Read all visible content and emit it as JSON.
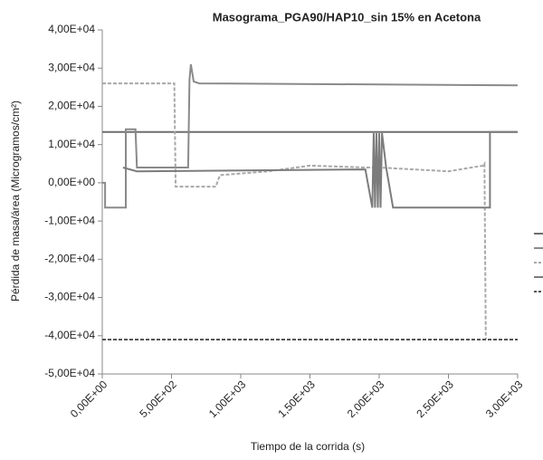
{
  "chart_data": {
    "type": "line",
    "title": "Masograma_PGA90/HAP10_sin 15% en Acetona",
    "x_label": "Tiempo de la corrida (s)",
    "y_label": "Pérdida de masa/área (Microgramos/cm²)",
    "xlim": [
      0,
      3000
    ],
    "xticks": [
      {
        "value": 0,
        "label": "0,00E+00"
      },
      {
        "value": 500,
        "label": "5,00E+02"
      },
      {
        "value": 1000,
        "label": "1,00E+03"
      },
      {
        "value": 1500,
        "label": "1,50E+03"
      },
      {
        "value": 2000,
        "label": "2,00E+03"
      },
      {
        "value": 2500,
        "label": "2,50E+03"
      },
      {
        "value": 3000,
        "label": "3,00E+03"
      }
    ],
    "ylim": [
      -50000,
      40000
    ],
    "yticks": [
      {
        "value": -50000,
        "label": "-5,00E+04"
      },
      {
        "value": -40000,
        "label": "-4,00E+04"
      },
      {
        "value": -30000,
        "label": "-3,00E+04"
      },
      {
        "value": -20000,
        "label": "-2,00E+04"
      },
      {
        "value": -10000,
        "label": "-1,00E+04"
      },
      {
        "value": 0,
        "label": "0,00E+00"
      },
      {
        "value": 10000,
        "label": "1,00E+04"
      },
      {
        "value": 20000,
        "label": "2,00E+04"
      },
      {
        "value": 30000,
        "label": "3,00E+04"
      },
      {
        "value": 40000,
        "label": "4,00E+04"
      }
    ],
    "grid": false,
    "series": [
      {
        "color": "#6e6e6e",
        "dash": false,
        "x": [
          0,
          3000
        ],
        "values": [
          13300,
          13300
        ]
      },
      {
        "color": "#8a8a8a",
        "dash": false,
        "x": [
          0,
          20,
          20,
          170,
          170,
          190,
          240,
          250,
          620,
          630,
          640,
          660,
          700,
          3000
        ],
        "values": [
          0,
          0,
          -6500,
          -6500,
          14000,
          14000,
          14000,
          4000,
          4000,
          27000,
          31000,
          26500,
          26000,
          25500
        ]
      },
      {
        "color": "#a8a8a8",
        "dash": true,
        "x": [
          0,
          500,
          520,
          530,
          820,
          850,
          1200,
          1500,
          1900,
          2000,
          2500,
          2750,
          2760,
          2770
        ],
        "values": [
          26000,
          26000,
          26000,
          -1000,
          -1000,
          2000,
          3000,
          4500,
          4000,
          4000,
          3000,
          4500,
          5000,
          -41000
        ]
      },
      {
        "color": "#7c7c7c",
        "dash": false,
        "x": [
          150,
          250,
          1900,
          1950,
          1960,
          1970,
          1980,
          1990,
          2000,
          2010,
          2020,
          2050,
          2100,
          2800,
          2800,
          3000
        ],
        "values": [
          4000,
          3000,
          3500,
          -6500,
          13000,
          -6500,
          13000,
          -6500,
          13000,
          -6500,
          13000,
          4000,
          -6500,
          -6500,
          13300,
          13300
        ]
      },
      {
        "color": "#555555",
        "dash": true,
        "x": [
          0,
          3000
        ],
        "values": [
          -41000,
          -41000
        ]
      }
    ]
  }
}
